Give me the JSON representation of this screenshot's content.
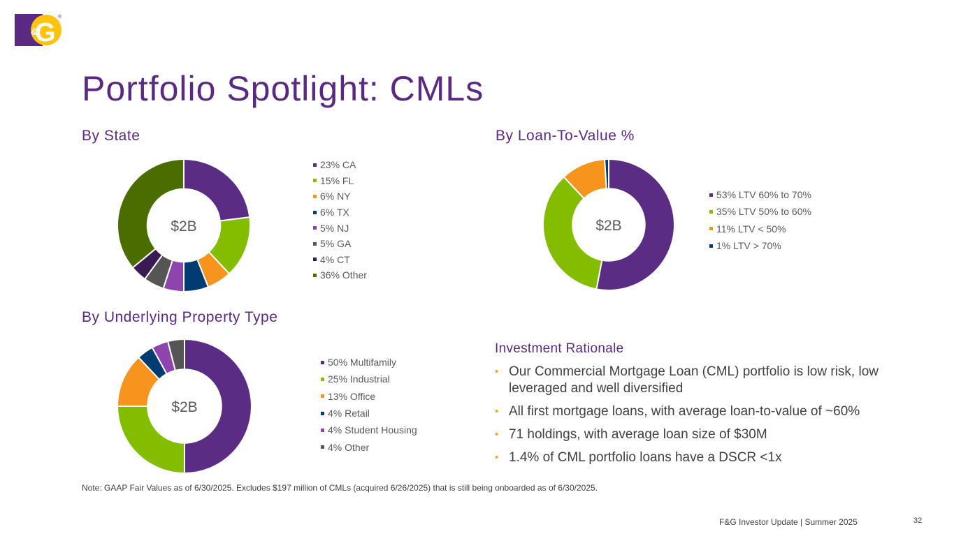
{
  "logo": {
    "text_left": "F",
    "text_amp": "&",
    "text_right": "G",
    "reg_mark": "®"
  },
  "title": "Portfolio Spotlight:  CMLs",
  "sections": {
    "state": "By State",
    "ltv": "By Loan-To-Value %",
    "property": "By Underlying Property Type"
  },
  "chart_data": [
    {
      "type": "pie",
      "title": "By State",
      "center_label": "$2B",
      "categories": [
        "23% CA",
        "15% FL",
        "6% NY",
        "6% TX",
        "5% NJ",
        "5% GA",
        "4% CT",
        "36% Other"
      ],
      "values": [
        23,
        15,
        6,
        6,
        5,
        5,
        4,
        36
      ],
      "colors": [
        "#5b2c83",
        "#84bd00",
        "#f7941d",
        "#003c71",
        "#8e44ad",
        "#555555",
        "#3a1a55",
        "#4b6d00"
      ],
      "legend": "right"
    },
    {
      "type": "pie",
      "title": "By Loan-To-Value %",
      "center_label": "$2B",
      "categories": [
        "53% LTV 60% to 70%",
        "35% LTV 50% to 60%",
        "11% LTV < 50%",
        "1% LTV > 70%"
      ],
      "values": [
        53,
        35,
        11,
        1
      ],
      "colors": [
        "#5b2c83",
        "#84bd00",
        "#f7941d",
        "#003c71"
      ],
      "legend": "right"
    },
    {
      "type": "pie",
      "title": "By Underlying Property Type",
      "center_label": "$2B",
      "categories": [
        "50% Multifamily",
        "25% Industrial",
        "13% Office",
        "4% Retail",
        "4% Student Housing",
        "4% Other"
      ],
      "values": [
        50,
        25,
        13,
        4,
        4,
        4
      ],
      "colors": [
        "#5b2c83",
        "#84bd00",
        "#f7941d",
        "#003c71",
        "#8e44ad",
        "#555555"
      ],
      "legend": "right"
    }
  ],
  "rationale": {
    "title": "Investment Rationale",
    "bullet_char": "•",
    "bullets": [
      "Our Commercial Mortgage Loan (CML) portfolio is low risk, low leveraged and well diversified",
      "All first mortgage loans, with average loan-to-value of ~60%",
      "71 holdings, with average loan size of $30M",
      "1.4% of CML portfolio loans have a DSCR <1x"
    ]
  },
  "note": "Note: GAAP Fair Values as of 6/30/2025. Excludes $197 million of CMLs (acquired 6/26/2025) that is still being onboarded as of 6/30/2025.",
  "footer": "F&G Investor Update |  Summer 2025",
  "page_number": "32",
  "colors": {
    "brand_purple": "#5a2a82",
    "brand_yellow": "#ffc20e",
    "bullet_orange": "#f5a31a"
  }
}
